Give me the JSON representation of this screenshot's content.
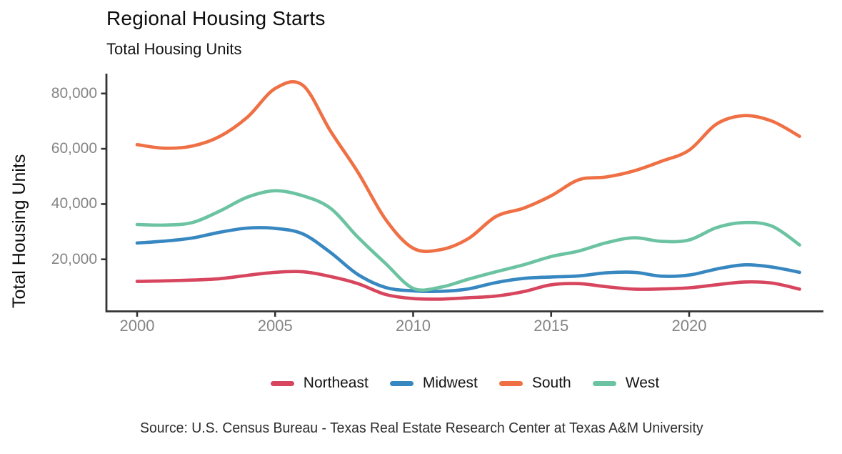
{
  "chart_data": {
    "type": "line",
    "title": "Regional Housing Starts",
    "subtitle": "Total Housing Units",
    "xlabel": "",
    "ylabel": "Total Housing Units",
    "grid": false,
    "legend_position": "bottom",
    "xlim": [
      1998.9,
      2025
    ],
    "ylim": [
      0,
      87000
    ],
    "x": [
      2000,
      2001,
      2002,
      2003,
      2004,
      2005,
      2006,
      2007,
      2008,
      2009,
      2010,
      2011,
      2012,
      2013,
      2014,
      2015,
      2016,
      2017,
      2018,
      2019,
      2020,
      2021,
      2022,
      2023,
      2024
    ],
    "series": [
      {
        "name": "Northeast",
        "color": "#d7465e",
        "values": [
          12000,
          12200,
          12500,
          13000,
          14200,
          15300,
          15500,
          13800,
          11200,
          7300,
          5800,
          5600,
          6100,
          6700,
          8300,
          10800,
          11200,
          10100,
          9200,
          9300,
          9700,
          10800,
          11800,
          11400,
          9200
        ]
      },
      {
        "name": "Midwest",
        "color": "#3787c1",
        "values": [
          25900,
          26600,
          27700,
          29800,
          31300,
          31200,
          29200,
          22500,
          14500,
          9800,
          8600,
          8400,
          9300,
          11600,
          13100,
          13600,
          14000,
          15100,
          15300,
          13900,
          14300,
          16500,
          18000,
          17200,
          15300
        ]
      },
      {
        "name": "South",
        "color": "#ef7044",
        "values": [
          61500,
          60200,
          61000,
          64500,
          71500,
          81800,
          83000,
          66500,
          51500,
          34500,
          24000,
          23500,
          27500,
          35500,
          38500,
          43000,
          48800,
          49800,
          52000,
          55500,
          59500,
          69000,
          72000,
          70000,
          64500
        ]
      },
      {
        "name": "West",
        "color": "#6bc3a1",
        "values": [
          32600,
          32400,
          33300,
          37500,
          42500,
          44800,
          43000,
          38500,
          28000,
          18500,
          9500,
          9900,
          12800,
          15500,
          18000,
          21000,
          23000,
          26000,
          27800,
          26500,
          27000,
          31500,
          33300,
          32000,
          25200
        ]
      }
    ],
    "x_ticks": [
      {
        "value": 2000,
        "label": "2000"
      },
      {
        "value": 2005,
        "label": "2005"
      },
      {
        "value": 2010,
        "label": "2010"
      },
      {
        "value": 2015,
        "label": "2015"
      },
      {
        "value": 2020,
        "label": "2020"
      }
    ],
    "y_ticks": [
      {
        "value": 20000,
        "label": "20,000"
      },
      {
        "value": 40000,
        "label": "40,000"
      },
      {
        "value": 60000,
        "label": "60,000"
      },
      {
        "value": 80000,
        "label": "80,000"
      }
    ],
    "axis_color": "#333333",
    "tick_label_color": "#848484"
  },
  "footer": {
    "source": "Source: U.S. Census Bureau - Texas Real Estate Research Center at Texas A&M University"
  }
}
